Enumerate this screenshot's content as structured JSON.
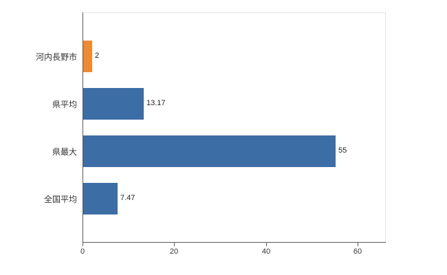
{
  "chart_data": {
    "type": "bar",
    "orientation": "horizontal",
    "title": "",
    "xlabel": "",
    "ylabel": "",
    "categories": [
      "河内長野市",
      "県平均",
      "県最大",
      "全国平均"
    ],
    "values": [
      2,
      13.17,
      55,
      7.47
    ],
    "value_labels": [
      "2",
      "13.17",
      "55",
      "7.47"
    ],
    "bar_colors": [
      "#ed8a32",
      "#3d6da5",
      "#3d6da5",
      "#3d6da5"
    ],
    "xlim": [
      0,
      60
    ],
    "x_ticks": [
      0,
      20,
      40,
      60
    ],
    "x_tick_labels": [
      "0",
      "20",
      "40",
      "60"
    ],
    "grid": false,
    "legend": false,
    "colors": {
      "highlight_bar": "#ed8a32",
      "default_bar": "#3d6da5",
      "axis": "#595959",
      "frame": "#e3e3e3",
      "background": "#ffffff"
    }
  }
}
